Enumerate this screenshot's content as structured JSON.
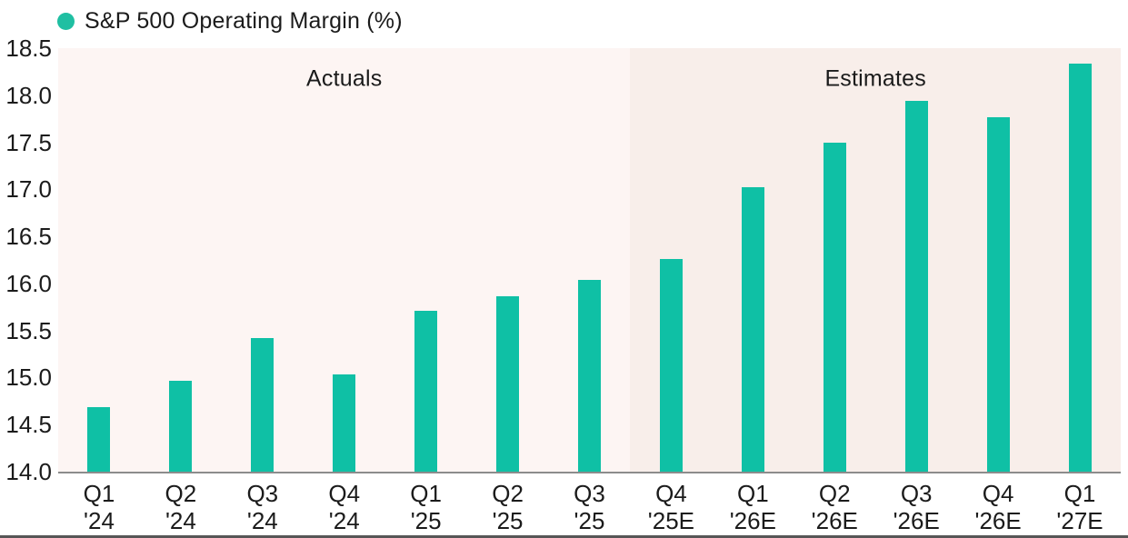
{
  "colors": {
    "bar": "#0fc0a5",
    "legend_dot": "#1fbfa2",
    "actuals_bg": "#fdf5f3",
    "estimates_bg": "#f8eeea",
    "axis_line": "#8c8c8c",
    "bottom_rule": "#565656",
    "text": "#1b1b1b"
  },
  "chart_data": {
    "type": "bar",
    "legend_label": "S&P 500 Operating Margin (%)",
    "categories": [
      [
        "Q1",
        "'24"
      ],
      [
        "Q2",
        "'24"
      ],
      [
        "Q3",
        "'24"
      ],
      [
        "Q4",
        "'24"
      ],
      [
        "Q1",
        "'25"
      ],
      [
        "Q2",
        "'25"
      ],
      [
        "Q3",
        "'25"
      ],
      [
        "Q4",
        "'25E"
      ],
      [
        "Q1",
        "'26E"
      ],
      [
        "Q2",
        "'26E"
      ],
      [
        "Q3",
        "'26E"
      ],
      [
        "Q4",
        "'26E"
      ],
      [
        "Q1",
        "'27E"
      ]
    ],
    "values": [
      14.69,
      14.97,
      15.42,
      15.03,
      15.71,
      15.86,
      16.04,
      16.26,
      17.02,
      17.5,
      17.94,
      17.77,
      18.34
    ],
    "ylim": [
      14.0,
      18.5
    ],
    "yticks": [
      18.5,
      18.0,
      17.5,
      17.0,
      16.5,
      16.0,
      15.5,
      15.0,
      14.5,
      14.0
    ],
    "grid": false,
    "legend_position": "top-left",
    "regions": [
      {
        "label": "Actuals",
        "from_index": 0,
        "to_index": 6
      },
      {
        "label": "Estimates",
        "from_index": 7,
        "to_index": 12
      }
    ]
  }
}
